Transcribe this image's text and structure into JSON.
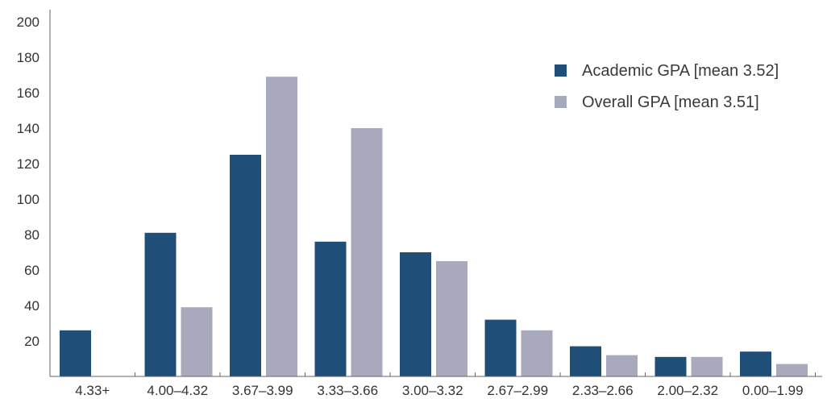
{
  "chart_data": {
    "type": "bar",
    "categories": [
      "4.33+",
      "4.00–4.32",
      "3.67–3.99",
      "3.33–3.66",
      "3.00–3.32",
      "2.67–2.99",
      "2.33–2.66",
      "2.00–2.32",
      "0.00–1.99"
    ],
    "series": [
      {
        "name": "Academic GPA [mean 3.52]",
        "color": "#1f4e79",
        "values": [
          26,
          81,
          125,
          76,
          70,
          32,
          17,
          11,
          14
        ]
      },
      {
        "name": "Overall GPA [mean 3.51]",
        "color": "#a8a9bc",
        "values": [
          0,
          39,
          169,
          140,
          65,
          26,
          12,
          11,
          7
        ]
      }
    ],
    "yticks": [
      20,
      40,
      60,
      80,
      100,
      120,
      140,
      160,
      180,
      200
    ],
    "ylim": [
      0,
      200
    ],
    "title": "",
    "xlabel": "",
    "ylabel": "",
    "grid": false,
    "legend_position": "top-right"
  }
}
